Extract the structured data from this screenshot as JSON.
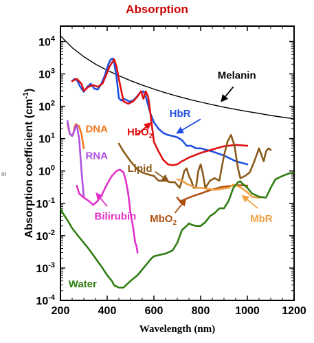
{
  "chart_data": {
    "type": "line",
    "title": "Absorption",
    "xlabel": "Wavelength (nm)",
    "ylabel_main": "Absorption coefficient (cm",
    "ylabel_exp": "-1",
    "ylabel_close": ")",
    "xlim": [
      200,
      1200
    ],
    "ylim": [
      0.0001,
      30000
    ],
    "yscale": "log",
    "x_ticks": [
      {
        "value": 200,
        "label": "200"
      },
      {
        "value": 400,
        "label": "400"
      },
      {
        "value": 600,
        "label": "600"
      },
      {
        "value": 800,
        "label": "800"
      },
      {
        "value": 1000,
        "label": "1000"
      },
      {
        "value": 1200,
        "label": "1200"
      }
    ],
    "y_ticks": [
      {
        "exp": 4,
        "base": "10",
        "sup": "4"
      },
      {
        "exp": 3,
        "base": "10",
        "sup": "3"
      },
      {
        "exp": 2,
        "base": "10",
        "sup": "2"
      },
      {
        "exp": 1,
        "base": "10",
        "sup": "1"
      },
      {
        "exp": 0,
        "base": "10",
        "sup": "0"
      },
      {
        "exp": -1,
        "base": "10",
        "sup": "-1"
      },
      {
        "exp": -2,
        "base": "10",
        "sup": "-2"
      },
      {
        "exp": -3,
        "base": "10",
        "sup": "-3"
      },
      {
        "exp": -4,
        "base": "10",
        "sup": "-4"
      }
    ],
    "colors": {
      "title": "#cc0000",
      "Melanin": "#000000",
      "HbR": "#1f4fe0",
      "HbO2": "#e01010",
      "DNA": "#f07820",
      "RNA": "#b050e0",
      "Lipid": "#8b5a1a",
      "Bilirubin": "#e030c8",
      "MbO2": "#b05010",
      "MbR": "#f0a040",
      "Water": "#2e7d10"
    },
    "series": [
      {
        "name": "Melanin",
        "x": [
          200,
          250,
          300,
          350,
          400,
          450,
          500,
          550,
          600,
          650,
          700,
          750,
          800,
          850,
          900,
          950,
          1000,
          1050,
          1100,
          1150,
          1200
        ],
        "y": [
          15000,
          6500,
          3400,
          2000,
          1300,
          880,
          620,
          450,
          340,
          260,
          205,
          165,
          135,
          112,
          94,
          80,
          69,
          60,
          52,
          46,
          41
        ]
      },
      {
        "name": "HbR",
        "x": [
          250,
          260,
          270,
          285,
          300,
          315,
          330,
          345,
          360,
          375,
          390,
          405,
          415,
          425,
          430,
          440,
          450,
          460,
          470,
          480,
          495,
          510,
          525,
          540,
          555,
          565,
          575,
          585,
          600,
          620,
          640,
          660,
          680,
          700,
          720,
          740,
          760,
          780,
          800,
          850,
          900,
          950,
          1000
        ],
        "y": [
          600,
          700,
          650,
          400,
          280,
          400,
          500,
          350,
          330,
          500,
          900,
          2000,
          2800,
          3000,
          2200,
          800,
          180,
          150,
          170,
          160,
          140,
          150,
          190,
          260,
          290,
          200,
          110,
          60,
          32,
          20,
          15,
          13,
          12,
          11,
          9,
          6,
          6,
          5,
          5,
          4,
          3,
          2,
          1.6
        ]
      },
      {
        "name": "HbO2",
        "x": [
          250,
          270,
          290,
          300,
          320,
          340,
          360,
          380,
          400,
          410,
          420,
          430,
          440,
          450,
          470,
          490,
          510,
          530,
          545,
          555,
          565,
          575,
          580,
          590,
          600,
          620,
          640,
          660,
          680,
          700,
          720,
          750,
          800,
          850,
          900,
          950,
          1000
        ],
        "y": [
          600,
          700,
          500,
          300,
          400,
          450,
          400,
          500,
          1100,
          1700,
          2200,
          2800,
          1700,
          700,
          140,
          120,
          140,
          200,
          290,
          170,
          290,
          200,
          120,
          30,
          8,
          4,
          2.2,
          1.6,
          1.5,
          1.6,
          2,
          2.6,
          3.6,
          4.6,
          5.8,
          6.4,
          6
        ]
      },
      {
        "name": "DNA",
        "x": [
          230,
          240,
          250,
          255,
          260,
          265,
          270,
          280,
          290,
          300
        ],
        "y": [
          28,
          14,
          12,
          14,
          22,
          28,
          27,
          24,
          14,
          5
        ]
      },
      {
        "name": "RNA",
        "x": [
          230,
          240,
          250,
          260,
          265,
          270,
          280,
          290,
          300
        ],
        "y": [
          35,
          14,
          12,
          18,
          24,
          26,
          10,
          1,
          0.15
        ]
      },
      {
        "name": "Lipid",
        "x": [
          450,
          470,
          500,
          530,
          550,
          570,
          600,
          620,
          650,
          670,
          690,
          710,
          720,
          730,
          740,
          750,
          760,
          770,
          780,
          790,
          800,
          810,
          820,
          840,
          860,
          880,
          900,
          915,
          930,
          945,
          960,
          970,
          990,
          1010,
          1030,
          1050,
          1070,
          1080,
          1090,
          1100
        ],
        "y": [
          7,
          4,
          2,
          1.1,
          0.9,
          0.8,
          0.7,
          0.5,
          0.5,
          0.45,
          0.45,
          0.3,
          0.5,
          1,
          1.2,
          0.7,
          0.5,
          0.3,
          0.3,
          1,
          1.6,
          0.8,
          0.3,
          0.5,
          0.6,
          0.5,
          3,
          8,
          13,
          6,
          1.2,
          0.6,
          0.7,
          0.9,
          2,
          5,
          2,
          4,
          5,
          4.5
        ]
      },
      {
        "name": "Bilirubin",
        "x": [
          270,
          280,
          300,
          320,
          340,
          360,
          380,
          400,
          420,
          440,
          455,
          470,
          480,
          490,
          500,
          510,
          520,
          525,
          530
        ],
        "y": [
          0.35,
          0.2,
          0.15,
          0.12,
          0.09,
          0.12,
          0.2,
          0.4,
          0.7,
          1.0,
          1.1,
          0.9,
          0.5,
          0.2,
          0.05,
          0.02,
          0.006,
          0.005,
          0.003
        ]
      },
      {
        "name": "MbO2",
        "x": [
          700,
          710,
          720,
          740,
          760,
          780,
          800,
          830,
          860,
          890,
          920,
          950,
          980,
          1000
        ],
        "y": [
          0.15,
          0.12,
          0.12,
          0.14,
          0.16,
          0.18,
          0.2,
          0.24,
          0.28,
          0.32,
          0.34,
          0.36,
          0.36,
          0.35
        ]
      },
      {
        "name": "MbR",
        "x": [
          700,
          720,
          740,
          760,
          780,
          800,
          830,
          860,
          890,
          920,
          940,
          960,
          980,
          1000,
          1020,
          1040,
          1060
        ],
        "y": [
          0.55,
          0.5,
          0.4,
          0.35,
          0.3,
          0.3,
          0.28,
          0.26,
          0.28,
          0.3,
          0.38,
          0.34,
          0.28,
          0.22,
          0.16,
          0.15,
          0.15
        ]
      },
      {
        "name": "Water",
        "x": [
          200,
          210,
          230,
          250,
          280,
          300,
          320,
          350,
          380,
          400,
          420,
          430,
          450,
          470,
          500,
          530,
          560,
          590,
          600,
          620,
          650,
          680,
          700,
          720,
          740,
          750,
          760,
          780,
          800,
          820,
          840,
          860,
          880,
          900,
          920,
          940,
          960,
          970,
          980,
          1000,
          1020,
          1050,
          1080,
          1100,
          1120,
          1150,
          1180,
          1200
        ],
        "y": [
          0.07,
          0.05,
          0.03,
          0.017,
          0.009,
          0.006,
          0.004,
          0.002,
          0.001,
          0.0006,
          0.0004,
          0.00029,
          0.00025,
          0.00025,
          0.0004,
          0.0006,
          0.0011,
          0.002,
          0.0023,
          0.0025,
          0.0028,
          0.0035,
          0.006,
          0.015,
          0.02,
          0.024,
          0.022,
          0.02,
          0.02,
          0.026,
          0.04,
          0.05,
          0.07,
          0.07,
          0.12,
          0.3,
          0.45,
          0.48,
          0.4,
          0.3,
          0.2,
          0.16,
          0.15,
          0.3,
          0.55,
          0.7,
          0.85,
          0.9
        ]
      }
    ],
    "labels": [
      {
        "key": "Melanin",
        "text": "Melanin",
        "x": 955,
        "y": 900,
        "sub": ""
      },
      {
        "key": "HbR",
        "text": "HbR",
        "x": 712,
        "y": 60,
        "sub": ""
      },
      {
        "key": "HbO2",
        "text": "HbO",
        "x": 540,
        "y": 16,
        "sub": "2"
      },
      {
        "key": "DNA",
        "text": "DNA",
        "x": 355,
        "y": 20,
        "sub": ""
      },
      {
        "key": "RNA",
        "text": "RNA",
        "x": 355,
        "y": 3,
        "sub": ""
      },
      {
        "key": "Lipid",
        "text": "Lipid",
        "x": 540,
        "y": 1.2,
        "sub": ""
      },
      {
        "key": "Bilirubin",
        "text": "Bilirubin",
        "x": 435,
        "y": 0.04,
        "sub": ""
      },
      {
        "key": "MbO2",
        "text": "MbO",
        "x": 640,
        "y": 0.034,
        "sub": "2"
      },
      {
        "key": "MbR",
        "text": "MbR",
        "x": 1060,
        "y": 0.034,
        "sub": ""
      },
      {
        "key": "Water",
        "text": "Water",
        "x": 295,
        "y": 0.00032,
        "sub": ""
      }
    ],
    "arrows": [
      {
        "key": "Melanin",
        "x1": 940,
        "y1": 400,
        "x2": 890,
        "y2": 145
      },
      {
        "key": "HbR",
        "x1": 800,
        "y1": 40,
        "x2": 700,
        "y2": 15
      },
      {
        "key": "HbO2",
        "x1": 525,
        "y1": 13,
        "x2": 585,
        "y2": 30
      },
      {
        "key": "Lipid",
        "x1": 605,
        "y1": 0.95,
        "x2": 660,
        "y2": 0.5
      },
      {
        "key": "Bilirubin",
        "x1": 400,
        "y1": 0.08,
        "x2": 355,
        "y2": 0.2
      },
      {
        "key": "MbO2",
        "x1": 690,
        "y1": 0.05,
        "x2": 735,
        "y2": 0.13
      },
      {
        "key": "MbR",
        "x1": 1045,
        "y1": 0.07,
        "x2": 980,
        "y2": 0.17
      }
    ],
    "stray_text": "m"
  }
}
